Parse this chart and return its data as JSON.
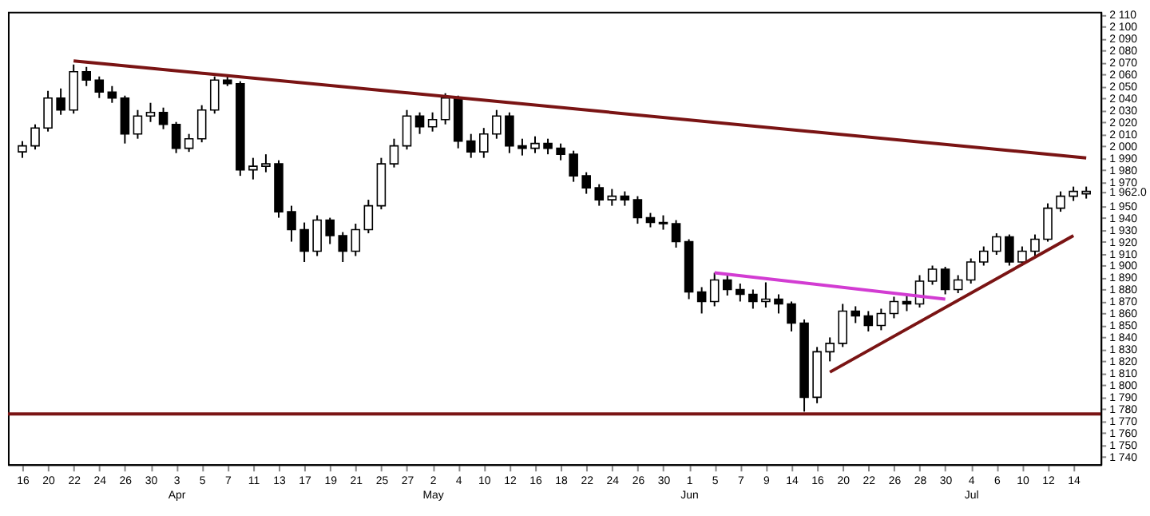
{
  "chart_data": {
    "type": "candlestick",
    "categories": [
      "16",
      null,
      "20",
      null,
      "22",
      null,
      "24",
      null,
      "26",
      null,
      "30",
      null,
      "3 Apr",
      null,
      "5",
      null,
      "7",
      null,
      "11",
      null,
      "13",
      null,
      "17",
      null,
      "19",
      null,
      "21",
      null,
      "25",
      null,
      "27",
      null,
      "2 May",
      null,
      "4",
      null,
      "10",
      null,
      "12",
      null,
      "16",
      null,
      "18",
      null,
      "22",
      null,
      "24",
      null,
      "26",
      null,
      "30",
      null,
      "1 Jun",
      null,
      "5",
      null,
      "7",
      null,
      "9",
      null,
      "14",
      null,
      "16",
      null,
      "20",
      null,
      "22",
      null,
      "26",
      null,
      "28",
      null,
      "30",
      null,
      "4 Jul",
      null,
      "6",
      null,
      "10",
      null,
      "12",
      null,
      "14",
      null
    ],
    "ohlc": [
      [
        1995,
        2004,
        1990,
        2000
      ],
      [
        2000,
        2018,
        1997,
        2015
      ],
      [
        2015,
        2046,
        2012,
        2040
      ],
      [
        2040,
        2048,
        2026,
        2030
      ],
      [
        2030,
        2068,
        2027,
        2062
      ],
      [
        2062,
        2066,
        2050,
        2055
      ],
      [
        2055,
        2058,
        2040,
        2045
      ],
      [
        2045,
        2050,
        2036,
        2040
      ],
      [
        2040,
        2042,
        2002,
        2010
      ],
      [
        2010,
        2030,
        2006,
        2025
      ],
      [
        2025,
        2036,
        2020,
        2028
      ],
      [
        2028,
        2032,
        2014,
        2018
      ],
      [
        2018,
        2020,
        1994,
        1998
      ],
      [
        1998,
        2010,
        1995,
        2006
      ],
      [
        2006,
        2034,
        2003,
        2030
      ],
      [
        2030,
        2058,
        2027,
        2055
      ],
      [
        2055,
        2058,
        2050,
        2052
      ],
      [
        2052,
        2054,
        1975,
        1980
      ],
      [
        1980,
        1990,
        1972,
        1983
      ],
      [
        1983,
        1993,
        1978,
        1985
      ],
      [
        1985,
        1988,
        1940,
        1945
      ],
      [
        1945,
        1950,
        1920,
        1930
      ],
      [
        1930,
        1936,
        1903,
        1912
      ],
      [
        1912,
        1942,
        1908,
        1938
      ],
      [
        1938,
        1940,
        1918,
        1925
      ],
      [
        1925,
        1928,
        1903,
        1912
      ],
      [
        1912,
        1935,
        1908,
        1930
      ],
      [
        1930,
        1955,
        1927,
        1950
      ],
      [
        1950,
        1990,
        1947,
        1985
      ],
      [
        1985,
        2006,
        1982,
        2000
      ],
      [
        2000,
        2030,
        1997,
        2025
      ],
      [
        2025,
        2028,
        2010,
        2016
      ],
      [
        2016,
        2028,
        2012,
        2022
      ],
      [
        2022,
        2044,
        2018,
        2040
      ],
      [
        2040,
        2042,
        1998,
        2004
      ],
      [
        2004,
        2010,
        1990,
        1995
      ],
      [
        1995,
        2015,
        1990,
        2010
      ],
      [
        2010,
        2030,
        2006,
        2025
      ],
      [
        2025,
        2028,
        1994,
        2000
      ],
      [
        2000,
        2006,
        1992,
        1998
      ],
      [
        1998,
        2008,
        1994,
        2002
      ],
      [
        2002,
        2006,
        1993,
        1998
      ],
      [
        1998,
        2002,
        1988,
        1993
      ],
      [
        1993,
        1996,
        1970,
        1975
      ],
      [
        1975,
        1978,
        1960,
        1965
      ],
      [
        1965,
        1968,
        1950,
        1955
      ],
      [
        1955,
        1964,
        1950,
        1958
      ],
      [
        1958,
        1962,
        1950,
        1955
      ],
      [
        1955,
        1958,
        1935,
        1940
      ],
      [
        1940,
        1944,
        1932,
        1936
      ],
      [
        1936,
        1942,
        1930,
        1935
      ],
      [
        1935,
        1938,
        1915,
        1920
      ],
      [
        1920,
        1922,
        1872,
        1878
      ],
      [
        1878,
        1882,
        1860,
        1870
      ],
      [
        1870,
        1894,
        1866,
        1888
      ],
      [
        1888,
        1892,
        1875,
        1880
      ],
      [
        1880,
        1885,
        1870,
        1876
      ],
      [
        1876,
        1880,
        1864,
        1870
      ],
      [
        1870,
        1886,
        1865,
        1872
      ],
      [
        1872,
        1876,
        1860,
        1868
      ],
      [
        1868,
        1870,
        1845,
        1852
      ],
      [
        1852,
        1855,
        1778,
        1790
      ],
      [
        1790,
        1832,
        1785,
        1828
      ],
      [
        1828,
        1840,
        1820,
        1835
      ],
      [
        1835,
        1868,
        1832,
        1862
      ],
      [
        1862,
        1866,
        1852,
        1858
      ],
      [
        1858,
        1862,
        1845,
        1850
      ],
      [
        1850,
        1864,
        1846,
        1860
      ],
      [
        1860,
        1874,
        1856,
        1870
      ],
      [
        1870,
        1876,
        1862,
        1868
      ],
      [
        1868,
        1892,
        1865,
        1887
      ],
      [
        1887,
        1900,
        1884,
        1897
      ],
      [
        1897,
        1899,
        1876,
        1880
      ],
      [
        1880,
        1892,
        1877,
        1888
      ],
      [
        1888,
        1906,
        1885,
        1903
      ],
      [
        1903,
        1916,
        1900,
        1912
      ],
      [
        1912,
        1927,
        1909,
        1924
      ],
      [
        1924,
        1926,
        1900,
        1903
      ],
      [
        1903,
        1916,
        1900,
        1912
      ],
      [
        1912,
        1926,
        1908,
        1922
      ],
      [
        1922,
        1952,
        1920,
        1948
      ],
      [
        1948,
        1962,
        1945,
        1958
      ],
      [
        1958,
        1966,
        1954,
        1962
      ],
      [
        1960,
        1966,
        1956,
        1962
      ]
    ],
    "colors": [
      "#ffffff",
      "#ffffff",
      "#ffffff",
      "#000000",
      "#ffffff",
      "#000000",
      "#000000",
      "#000000",
      "#000000",
      "#ffffff",
      "#ffffff",
      "#000000",
      "#000000",
      "#ffffff",
      "#ffffff",
      "#ffffff",
      "#000000",
      "#000000",
      "#ffffff",
      "#ffffff",
      "#000000",
      "#000000",
      "#000000",
      "#ffffff",
      "#000000",
      "#000000",
      "#ffffff",
      "#ffffff",
      "#ffffff",
      "#ffffff",
      "#ffffff",
      "#000000",
      "#ffffff",
      "#ffffff",
      "#000000",
      "#000000",
      "#ffffff",
      "#ffffff",
      "#000000",
      "#000000",
      "#ffffff",
      "#000000",
      "#000000",
      "#000000",
      "#000000",
      "#000000",
      "#ffffff",
      "#000000",
      "#000000",
      "#000000",
      "#000000",
      "#000000",
      "#000000",
      "#000000",
      "#ffffff",
      "#000000",
      "#000000",
      "#000000",
      "#ffffff",
      "#000000",
      "#000000",
      "#000000",
      "#ffffff",
      "#ffffff",
      "#ffffff",
      "#000000",
      "#000000",
      "#ffffff",
      "#ffffff",
      "#000000",
      "#ffffff",
      "#ffffff",
      "#000000",
      "#ffffff",
      "#ffffff",
      "#ffffff",
      "#ffffff",
      "#000000",
      "#ffffff",
      "#ffffff",
      "#ffffff",
      "#ffffff",
      "#ffffff",
      "#ffffff"
    ],
    "series": [
      {
        "type": "line",
        "color": "#7a1414",
        "values": [
          null,
          null,
          null,
          null,
          2071,
          null,
          null,
          null,
          null,
          null,
          null,
          null,
          null,
          null,
          null,
          null,
          null,
          null,
          null,
          null,
          null,
          null,
          null,
          null,
          null,
          null,
          null,
          null,
          null,
          null,
          null,
          null,
          null,
          null,
          null,
          null,
          null,
          null,
          null,
          null,
          null,
          null,
          null,
          null,
          null,
          null,
          null,
          null,
          null,
          null,
          null,
          null,
          null,
          null,
          null,
          null,
          null,
          null,
          null,
          null,
          null,
          null,
          null,
          null,
          null,
          null,
          null,
          null,
          null,
          null,
          null,
          null,
          null,
          null,
          null,
          null,
          null,
          null,
          null,
          null,
          null,
          null,
          null,
          1990
        ]
      },
      {
        "type": "line",
        "color": "#d23cd2",
        "values": [
          null,
          null,
          null,
          null,
          null,
          null,
          null,
          null,
          null,
          null,
          null,
          null,
          null,
          null,
          null,
          null,
          null,
          null,
          null,
          null,
          null,
          null,
          null,
          null,
          null,
          null,
          null,
          null,
          null,
          null,
          null,
          null,
          null,
          null,
          null,
          null,
          null,
          null,
          null,
          null,
          null,
          null,
          null,
          null,
          null,
          null,
          null,
          null,
          null,
          null,
          null,
          null,
          null,
          null,
          1894,
          null,
          null,
          null,
          null,
          null,
          null,
          null,
          null,
          null,
          null,
          null,
          null,
          null,
          null,
          null,
          null,
          null,
          1872,
          null,
          null,
          null,
          null,
          null,
          null,
          null,
          null,
          null,
          null,
          null
        ]
      },
      {
        "type": "line",
        "color": "#7a1414",
        "values": [
          null,
          null,
          null,
          null,
          null,
          null,
          null,
          null,
          null,
          null,
          null,
          null,
          null,
          null,
          null,
          null,
          null,
          null,
          null,
          null,
          null,
          null,
          null,
          null,
          null,
          null,
          null,
          null,
          null,
          null,
          null,
          null,
          null,
          null,
          null,
          null,
          null,
          null,
          null,
          null,
          null,
          null,
          null,
          null,
          null,
          null,
          null,
          null,
          null,
          null,
          null,
          null,
          null,
          null,
          null,
          null,
          null,
          null,
          null,
          null,
          null,
          null,
          null,
          1811,
          null,
          null,
          null,
          null,
          null,
          null,
          null,
          null,
          null,
          null,
          null,
          null,
          null,
          null,
          null,
          null,
          null,
          null,
          1925,
          null
        ]
      }
    ],
    "ref_lines": [
      {
        "axis": "y",
        "value": 1776,
        "color": "#7a1414"
      }
    ],
    "ylim": [
      1734,
      2112
    ],
    "yticks": [
      {
        "value": 1740,
        "label": "1 740"
      },
      {
        "value": 1750,
        "label": "1 750"
      },
      {
        "value": 1760,
        "label": "1 760"
      },
      {
        "value": 1770,
        "label": "1 770"
      },
      {
        "value": 1780,
        "label": "1 780"
      },
      {
        "value": 1790,
        "label": "1 790"
      },
      {
        "value": 1800,
        "label": "1 800"
      },
      {
        "value": 1810,
        "label": "1 810"
      },
      {
        "value": 1820,
        "label": "1 820"
      },
      {
        "value": 1830,
        "label": "1 830"
      },
      {
        "value": 1840,
        "label": "1 840"
      },
      {
        "value": 1850,
        "label": "1 850"
      },
      {
        "value": 1860,
        "label": "1 860"
      },
      {
        "value": 1870,
        "label": "1 870"
      },
      {
        "value": 1880,
        "label": "1 880"
      },
      {
        "value": 1890,
        "label": "1 890"
      },
      {
        "value": 1900,
        "label": "1 900"
      },
      {
        "value": 1910,
        "label": "1 910"
      },
      {
        "value": 1920,
        "label": "1 920"
      },
      {
        "value": 1930,
        "label": "1 930"
      },
      {
        "value": 1940,
        "label": "1 940"
      },
      {
        "value": 1950,
        "label": "1 950"
      },
      {
        "value": 1962,
        "label": "1 962.0"
      },
      {
        "value": 1970,
        "label": "1 970"
      },
      {
        "value": 1980,
        "label": "1 980"
      },
      {
        "value": 1990,
        "label": "1 990"
      },
      {
        "value": 2000,
        "label": "2 000"
      },
      {
        "value": 2010,
        "label": "2 010"
      },
      {
        "value": 2020,
        "label": "2 020"
      },
      {
        "value": 2030,
        "label": "2 030"
      },
      {
        "value": 2040,
        "label": "2 040"
      },
      {
        "value": 2050,
        "label": "2 050"
      },
      {
        "value": 2060,
        "label": "2 060"
      },
      {
        "value": 2070,
        "label": "2 070"
      },
      {
        "value": 2080,
        "label": "2 080"
      },
      {
        "value": 2090,
        "label": "2 090"
      },
      {
        "value": 2100,
        "label": "2 100"
      },
      {
        "value": 2110,
        "label": "2 110"
      }
    ]
  }
}
